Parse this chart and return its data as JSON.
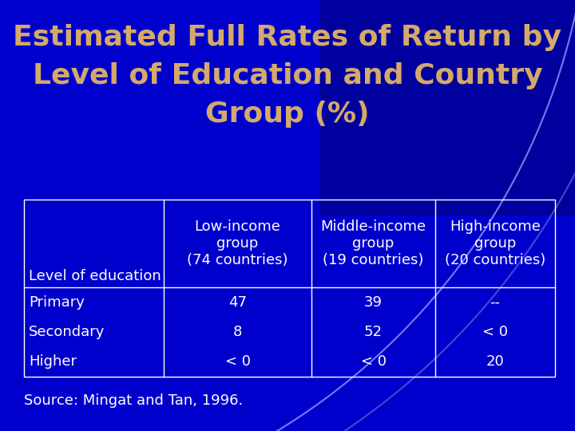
{
  "title_line1": "Estimated Full Rates of Return by",
  "title_line2": "Level of Education and Country",
  "title_line3": "Group (%)",
  "title_color": "#D4A96A",
  "bg_color_main": "#0000CC",
  "bg_color_dark": "#000080",
  "arc_color": "#8888FF",
  "arc_color2": "#6666EE",
  "col_headers": [
    "Low-income\ngroup\n(74 countries)",
    "Middle-income\ngroup\n(19 countries)",
    "High-income\ngroup\n(20 countries)"
  ],
  "row_header": "Level of education",
  "rows": [
    [
      "Primary",
      "47",
      "39",
      "--"
    ],
    [
      "Secondary",
      "8",
      "52",
      "< 0"
    ],
    [
      "Higher",
      "< 0",
      "< 0",
      "20"
    ]
  ],
  "source_text": "Source: Mingat and Tan, 1996.",
  "source_color": "#FFFFFF",
  "header_text_color": "#FFFFFF",
  "cell_text_color": "#FFFFFF",
  "table_border_color": "#FFFFFF",
  "title_fontsize": 26,
  "header_fontsize": 13,
  "cell_fontsize": 13,
  "source_fontsize": 13,
  "row_label_fontsize": 13
}
